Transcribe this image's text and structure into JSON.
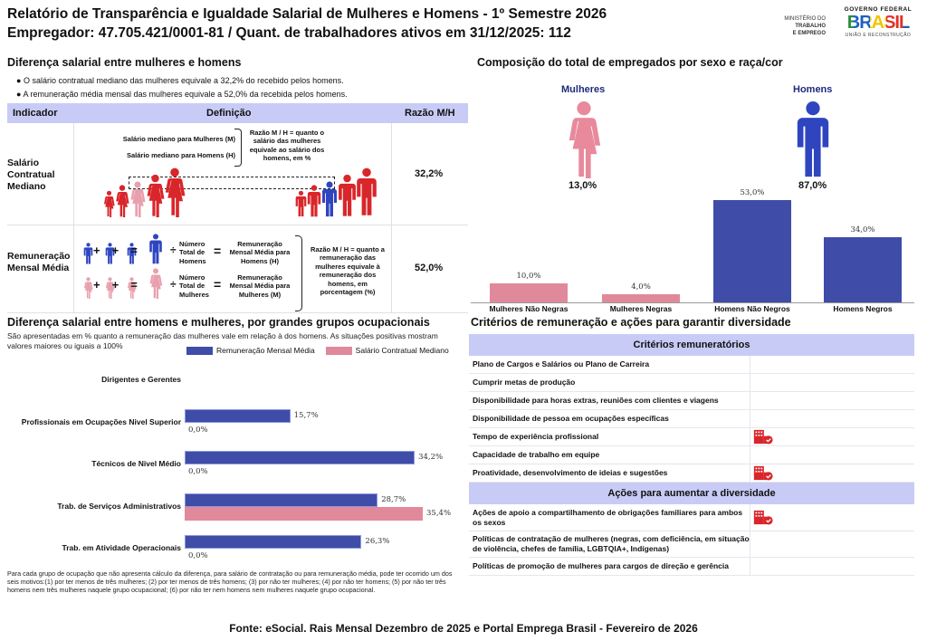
{
  "header": {
    "title": "Relatório de Transparência e Igualdade Salarial de Mulheres e Homens - 1º Semestre 2026",
    "subtitle": "Empregador: 47.705.421/0001-81 / Quant. de trabalhadores ativos em 31/12/2025: 112"
  },
  "logos": {
    "ministry": [
      "MINISTÉRIO DO",
      "TRABALHO",
      "E EMPREGO"
    ],
    "gov": "GOVERNO FEDERAL",
    "brasil": "BRASIL",
    "tagline": "UNIÃO E RECONSTRUÇÃO"
  },
  "gap": {
    "heading": "Diferença salarial entre mulheres e homens",
    "bullets": [
      "O salário contratual mediano das mulheres equivale a 32,2% do recebido pelos homens.",
      "A remuneração média mensal das mulheres equivale a 52,0% da recebida pelos homens."
    ],
    "table": {
      "headers": [
        "Indicador",
        "Definição",
        "Razão M/H"
      ],
      "rows": [
        {
          "indicator": "Salário Contratual Mediano",
          "def_lines": [
            "Salário mediano para Mulheres (M)",
            "Salário mediano para Homens (H)"
          ],
          "def_note": "Razão M / H = quanto o salário das mulheres equivale ao salário dos homens, em %",
          "ratio": "32,2%"
        },
        {
          "indicator": "Remuneração Mensal Média",
          "men_count": "Número Total de Homens",
          "men_result": "Remuneração Mensal Média para Homens (H)",
          "women_count": "Número Total de Mulheres",
          "women_result": "Remuneração Mensal Média para Mulheres (M)",
          "def_note": "Razão M / H = quanto a remuneração das mulheres equivale à remuneração dos homens, em porcentagem (%)",
          "ratio": "52,0%"
        }
      ],
      "ops": {
        "plus": "+",
        "eq": "=",
        "div": "÷"
      }
    }
  },
  "occupational": {
    "heading": "Diferença salarial entre homens e mulheres, por grandes grupos ocupacionais",
    "description": "São apresentadas em % quanto a remuneração das mulheres vale em relação à dos homens. As situações positivas mostram valores maiores ou iguais a 100%",
    "footnote": "Para cada grupo de ocupação que não apresenta cálculo da diferença, para salário de contratação ou para remuneração média, pode ter ocorrido um dos seis motivos:(1) por ter menos de três mulheres; (2) por ter menos de três homens; (3) por não ter mulheres; (4) por não ter homens; (5) por não ter três homens nem três mulheres naquele grupo ocupacional; (6) por não ter nem homens nem mulheres naquele grupo ocupacional."
  },
  "composition": {
    "heading": "Composição do total de empregados por sexo e raça/cor",
    "women_label": "Mulheres",
    "women_pct": "13,0%",
    "men_label": "Homens",
    "men_pct": "87,0%"
  },
  "criteria": {
    "heading": "Critérios de remuneração e ações para garantir diversidade",
    "section1": "Critérios remuneratórios",
    "items1": [
      {
        "label": "Plano de Cargos e Salários ou Plano de Carreira",
        "checked": false
      },
      {
        "label": "Cumprir metas de produção",
        "checked": false
      },
      {
        "label": "Disponibilidade para horas extras, reuniões com clientes e viagens",
        "checked": false
      },
      {
        "label": "Disponibilidade de pessoa em ocupações específicas",
        "checked": false
      },
      {
        "label": "Tempo de experiência profissional",
        "checked": true
      },
      {
        "label": "Capacidade de trabalho em equipe",
        "checked": false
      },
      {
        "label": "Proatividade, desenvolvimento de ideias e sugestões",
        "checked": true
      }
    ],
    "section2": "Ações para aumentar a diversidade",
    "items2": [
      {
        "label": "Ações de apoio a compartilhamento de obrigações familiares para ambos os sexos",
        "checked": true
      },
      {
        "label": "Políticas de contratação de mulheres (negras, com deficiência, em situação de violência, chefes de família, LGBTQIA+, Indígenas)",
        "checked": false
      },
      {
        "label": "Políticas de promoção de mulheres para cargos de direção e gerência",
        "checked": false
      }
    ],
    "check_icon": "building-check-icon",
    "check_color": "#d9262b"
  },
  "footer": "Fonte: eSocial. Rais Mensal Dezembro de 2025 e Portal Emprega Brasil - Fevereiro de 2026",
  "colors": {
    "header_bg": "#c8cbf6",
    "blue": "#3f4ca8",
    "pink": "#e0899a",
    "red": "#d9262b"
  },
  "chart_data": [
    {
      "type": "bar",
      "orientation": "horizontal",
      "categories": [
        "Dirigentes e Gerentes",
        "Profissionais em Ocupações Nivel Superior",
        "Técnicos de Nivel Médio",
        "Trab. de Serviços Administrativos",
        "Trab. em Atividade Operacionais"
      ],
      "series": [
        {
          "name": "Remuneração Mensal Média",
          "color": "#3f4ca8",
          "values": [
            null,
            15.7,
            34.2,
            28.7,
            26.3
          ]
        },
        {
          "name": "Salário Contratual Mediano",
          "color": "#e0899a",
          "values": [
            null,
            0.0,
            0.0,
            35.4,
            0.0
          ]
        }
      ],
      "legend": "top-right",
      "grid": false
    },
    {
      "type": "bar",
      "categories": [
        "Mulheres Não Negras",
        "Mulheres Negras",
        "Homens Não Negros",
        "Homens Negros"
      ],
      "values": [
        10.0,
        4.0,
        53.0,
        34.0
      ],
      "colors": [
        "#e0899a",
        "#e0899a",
        "#3f4ca8",
        "#3f4ca8"
      ],
      "grid": false
    }
  ]
}
